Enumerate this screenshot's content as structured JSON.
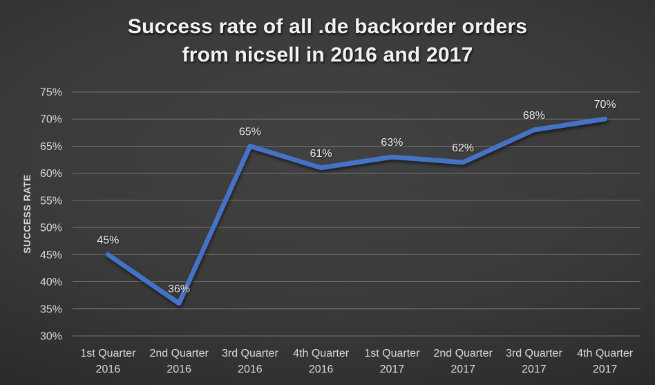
{
  "title": {
    "line1": "Success rate of all .de backorder orders",
    "line2": "from nicsell in 2016 and 2017"
  },
  "chart_data": {
    "type": "line",
    "title": "Success rate of all .de backorder orders from nicsell in 2016 and 2017",
    "categories": [
      "1st Quarter 2016",
      "2nd Quarter 2016",
      "3rd Quarter 2016",
      "4th Quarter 2016",
      "1st Quarter 2017",
      "2nd Quarter 2017",
      "3rd Quarter 2017",
      "4th Quarter 2017"
    ],
    "values": [
      45,
      36,
      65,
      61,
      63,
      62,
      68,
      70
    ],
    "data_labels": [
      "45%",
      "36%",
      "65%",
      "61%",
      "63%",
      "62%",
      "68%",
      "70%"
    ],
    "ylabel": "SUCCESS RATE",
    "xlabel": "",
    "ylim": [
      30,
      75
    ],
    "y_tick_step": 5,
    "y_tick_labels": [
      "30%",
      "35%",
      "40%",
      "45%",
      "50%",
      "55%",
      "60%",
      "65%",
      "70%",
      "75%"
    ],
    "grid": true,
    "legend": false,
    "colors": {
      "line": "#4472C4",
      "gridline": "#757575",
      "tick_text": "#d9d9d9",
      "data_label_text": "#efefef",
      "axis_title_text": "#d6d6d6",
      "title_text": "#f2f2f2"
    }
  }
}
